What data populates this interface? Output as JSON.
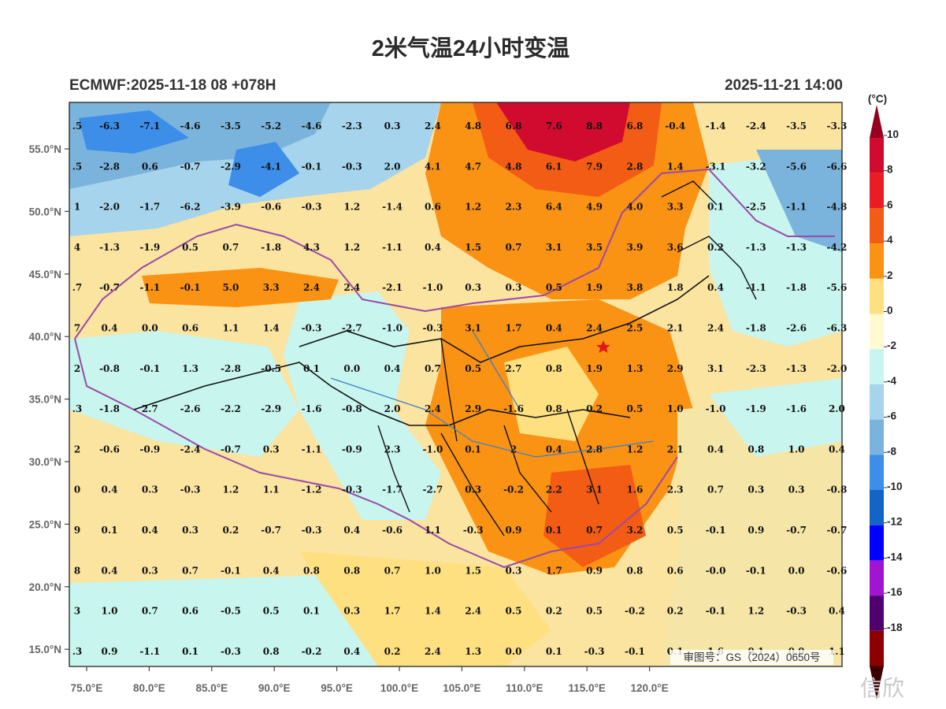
{
  "header": {
    "title": "2米气温24小时变温",
    "model_run": "ECMWF:2025-11-18 08 +078H",
    "valid_time": "2025-11-21 14:00"
  },
  "axes": {
    "lat_labels": [
      "55.0°N",
      "50.0°N",
      "45.0°N",
      "40.0°N",
      "35.0°N",
      "30.0°N",
      "25.0°N",
      "20.0°N",
      "15.0°N"
    ],
    "lon_labels": [
      "75.0°E",
      "80.0°E",
      "85.0°E",
      "90.0°E",
      "95.0°E",
      "100.0°E",
      "105.0°E",
      "110.0°E",
      "115.0°E",
      "120.0°E"
    ]
  },
  "colorbar": {
    "unit": "(°C)",
    "labels": [
      "10",
      "8",
      "6",
      "4",
      "2",
      "0",
      "-2",
      "-4",
      "-6",
      "-8",
      "-10",
      "-12",
      "-14",
      "-16",
      "-18"
    ],
    "colors": [
      "#d10a2f",
      "#ec1c24",
      "#f35c14",
      "#fa9214",
      "#fee080",
      "#fffad2",
      "#c8f5ee",
      "#a5d4ec",
      "#7ab4dc",
      "#3c8ee8",
      "#1464c8",
      "#0000ff",
      "#a014d2",
      "#50006e",
      "#8c0000"
    ],
    "top_color": "#96001e",
    "bottom_color": "#3c0000"
  },
  "grid_values": [
    [
      ".5",
      "-6.3",
      "-7.1",
      "-4.6",
      "-3.5",
      "-5.2",
      "-4.6",
      "-2.3",
      "0.3",
      "2.4",
      "4.8",
      "6.8",
      "7.6",
      "8.8",
      "6.8",
      "-0.4",
      "-1.4",
      "-2.4",
      "-3.5",
      "-3.3"
    ],
    [
      ".5",
      "-2.8",
      "0.6",
      "-0.7",
      "-2.9",
      "-4.1",
      "-0.1",
      "-0.3",
      "2.0",
      "4.1",
      "4.7",
      "4.8",
      "6.1",
      "7.9",
      "2.8",
      "1.4",
      "-3.1",
      "-3.2",
      "-5.6",
      "-6.6"
    ],
    [
      "1",
      "-2.0",
      "-1.7",
      "-6.2",
      "-3.9",
      "-0.6",
      "-0.3",
      "1.2",
      "-1.4",
      "0.6",
      "1.2",
      "2.3",
      "6.4",
      "4.9",
      "4.0",
      "3.3",
      "0.1",
      "-2.5",
      "-1.1",
      "-4.8"
    ],
    [
      "4",
      "-1.3",
      "-1.9",
      "0.5",
      "0.7",
      "-1.8",
      "4.3",
      "1.2",
      "-1.1",
      "0.4",
      "1.5",
      "0.7",
      "3.1",
      "3.5",
      "3.9",
      "3.6",
      "0.2",
      "-1.3",
      "-1.3",
      "-4.2"
    ],
    [
      ".7",
      "-0.7",
      "-1.1",
      "-0.1",
      "5.0",
      "3.3",
      "2.4",
      "2.4",
      "-2.1",
      "-1.0",
      "0.3",
      "0.3",
      "0.5",
      "1.9",
      "3.8",
      "1.8",
      "0.4",
      "-1.1",
      "-1.8",
      "-5.6"
    ],
    [
      "7",
      "0.4",
      "0.0",
      "0.6",
      "1.1",
      "1.4",
      "-0.3",
      "-2.7",
      "-1.0",
      "-0.3",
      "3.1",
      "1.7",
      "0.4",
      "2.4",
      "2.5",
      "2.1",
      "2.4",
      "-1.8",
      "-2.6",
      "-6.3"
    ],
    [
      "2",
      "-0.8",
      "-0.1",
      "1.3",
      "-2.8",
      "-0.5",
      "0.1",
      "0.0",
      "0.4",
      "0.7",
      "0.5",
      "2.7",
      "0.8",
      "1.9",
      "1.3",
      "2.9",
      "3.1",
      "-2.3",
      "-1.3",
      "-2.0"
    ],
    [
      ".3",
      "-1.8",
      "2.7",
      "-2.6",
      "-2.2",
      "-2.9",
      "-1.6",
      "-0.8",
      "2.0",
      "2.4",
      "2.9",
      "-1.6",
      "0.8",
      "0.2",
      "0.5",
      "1.0",
      "-1.0",
      "-1.9",
      "-1.6",
      "2.0"
    ],
    [
      "2",
      "-0.6",
      "-0.9",
      "-2.4",
      "-0.7",
      "0.3",
      "-1.1",
      "-0.9",
      "2.3",
      "-1.0",
      "0.1",
      "2",
      "0.4",
      "2.8",
      "1.2",
      "2.1",
      "0.4",
      "0.8",
      "1.0",
      "0.4"
    ],
    [
      "0",
      "0.4",
      "0.3",
      "-0.3",
      "1.2",
      "1.1",
      "-1.2",
      "-0.3",
      "-1.7",
      "-2.7",
      "0.3",
      "-0.2",
      "2.2",
      "3.1",
      "1.6",
      "2.3",
      "0.7",
      "0.3",
      "0.3",
      "-0.8"
    ],
    [
      "9",
      "0.1",
      "0.4",
      "0.3",
      "0.2",
      "-0.7",
      "-0.3",
      "0.4",
      "-0.6",
      "1.1",
      "-0.3",
      "0.9",
      "0.1",
      "0.7",
      "3.2",
      "0.5",
      "-0.1",
      "0.9",
      "-0.7",
      "-0.7"
    ],
    [
      "8",
      "0.4",
      "0.3",
      "0.7",
      "-0.1",
      "0.4",
      "0.8",
      "0.8",
      "0.7",
      "1.0",
      "1.5",
      "0.3",
      "1.7",
      "0.9",
      "0.8",
      "0.6",
      "-0.0",
      "-0.1",
      "0.0",
      "-0.6"
    ],
    [
      "3",
      "1.0",
      "0.7",
      "0.6",
      "-0.5",
      "0.5",
      "0.1",
      "0.3",
      "1.7",
      "1.4",
      "2.4",
      "0.5",
      "0.2",
      "0.5",
      "-0.2",
      "0.2",
      "-0.1",
      "1.2",
      "-0.3",
      "0.4"
    ],
    [
      ".3",
      "0.9",
      "-1.1",
      "0.1",
      "-0.3",
      "0.8",
      "-0.2",
      "0.4",
      "0.2",
      "2.4",
      "1.3",
      "0.0",
      "0.1",
      "-0.3",
      "-0.1",
      "0.1",
      "1.6",
      "0.1",
      "0.0",
      "1.1"
    ]
  ],
  "map_label": "审图号：GS（2024）0650号",
  "watermark": "信欣"
}
